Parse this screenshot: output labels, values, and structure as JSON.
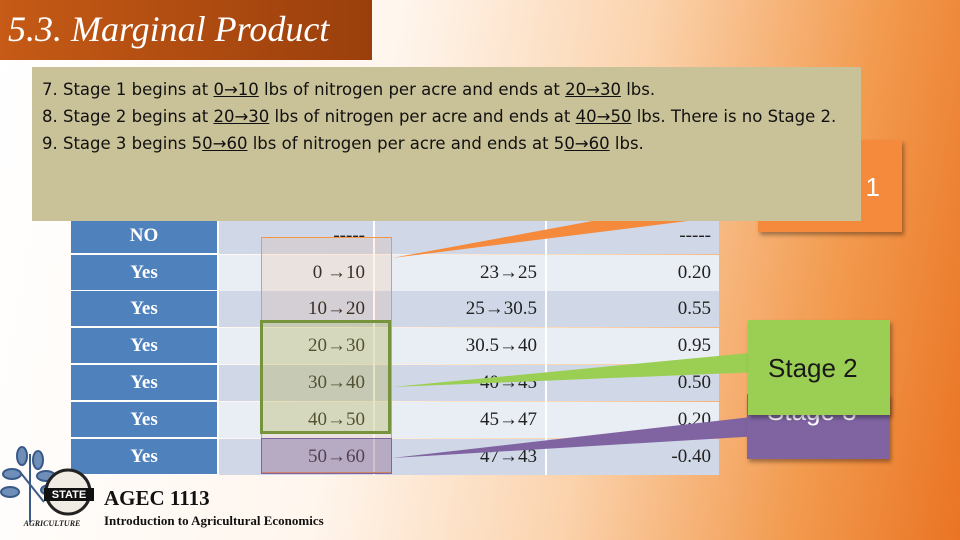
{
  "slide": {
    "title": "5.3. Marginal Product"
  },
  "table": {
    "rows": [
      {
        "label": "NO",
        "col1": "-----",
        "col2": "-",
        "col3": "-----"
      },
      {
        "label": "Yes",
        "col1": "0 →10",
        "col2": "23→25",
        "col3": "0.20"
      },
      {
        "label": "Yes",
        "col1": "10→20",
        "col2": "25→30.5",
        "col3": "0.55"
      },
      {
        "label": "Yes",
        "col1": "20→30",
        "col2": "30.5→40",
        "col3": "0.95"
      },
      {
        "label": "Yes",
        "col1": "30→40",
        "col2": "40→45",
        "col3": "0.50"
      },
      {
        "label": "Yes",
        "col1": "40→50",
        "col2": "45→47",
        "col3": "0.20"
      },
      {
        "label": "Yes",
        "col1": "50→60",
        "col2": "47→43",
        "col3": "-0.40"
      }
    ]
  },
  "callouts": {
    "stage1": "Stage 1",
    "stage2": "Stage 2",
    "stage3": "Stage 3",
    "colors": {
      "stage1": "#f58a3c",
      "stage2": "#9bcf53",
      "stage3": "#8064a2"
    }
  },
  "note": {
    "line1": {
      "pre": "7. Stage 1 begins at ",
      "u1": "0→10",
      "mid": " lbs of nitrogen per acre and ends at ",
      "u2": "20→30",
      "post": " lbs."
    },
    "line2": {
      "pre": "8. Stage 2 begins at ",
      "u1": "20→30",
      "mid": " lbs of nitrogen per acre and ends at ",
      "u2": "40→50",
      "post": " lbs. There is no Stage 2."
    },
    "line3": {
      "pre": "9. Stage 3 begins 5",
      "u1": "0→60",
      "mid": " lbs of nitrogen per acre and ends at 5",
      "u2": "0→60",
      "post": " lbs."
    }
  },
  "footer": {
    "logo_text": "STATE",
    "logo_sub": "AGRICULTURE",
    "course_code": "AGEC 1113",
    "course_name": "Introduction to Agricultural Economics"
  }
}
